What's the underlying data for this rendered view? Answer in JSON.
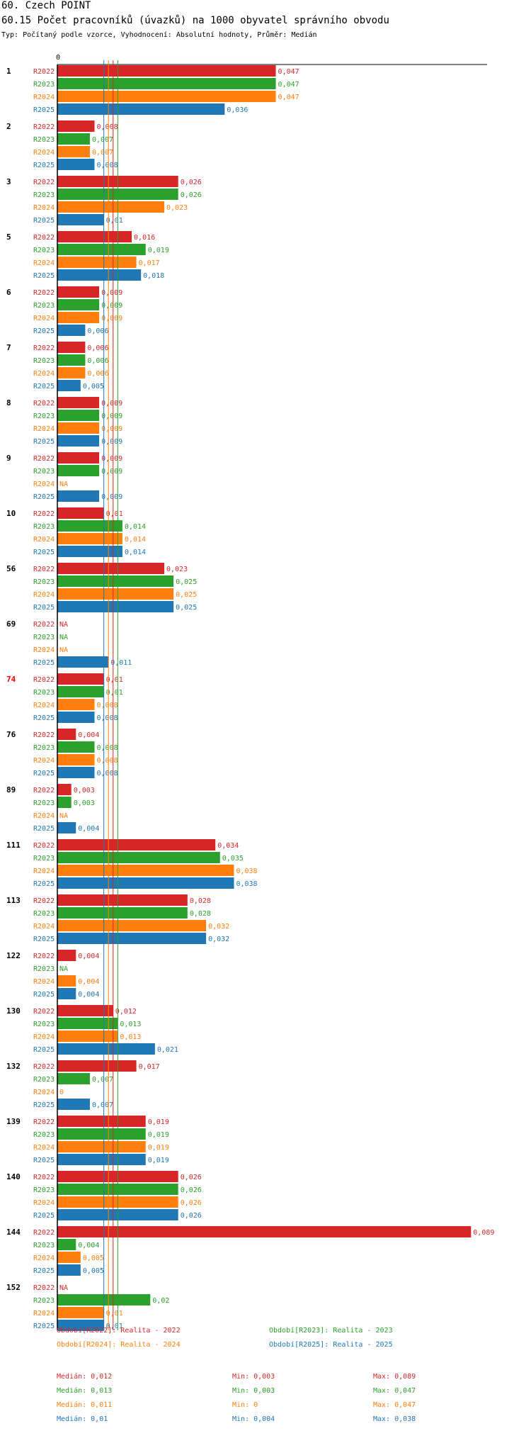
{
  "header": {
    "title": "60. Czech POINT",
    "subtitle": "60.15 Počet pracovníků (úvazků) na 1000 obyvatel správního obvodu",
    "description": "Typ: Počítaný podle vzorce, Vyhodnocení: Absolutní hodnoty, Průměr: Medián"
  },
  "colors": {
    "R2022": "#d62728",
    "R2023": "#2ca02c",
    "R2024": "#ff7f0e",
    "R2025": "#1f77b4",
    "highlight_group": "#ff0000"
  },
  "chart_data": {
    "type": "bar",
    "orientation": "horizontal",
    "axis_zero_label": "0",
    "series_names": [
      "R2022",
      "R2023",
      "R2024",
      "R2025"
    ],
    "groups": [
      {
        "label": "1",
        "values": [
          "0,047",
          "0,047",
          "0,047",
          "0,036"
        ]
      },
      {
        "label": "2",
        "values": [
          "0,008",
          "0,007",
          "0,007",
          "0,008"
        ]
      },
      {
        "label": "3",
        "values": [
          "0,026",
          "0,026",
          "0,023",
          "0,01"
        ]
      },
      {
        "label": "5",
        "values": [
          "0,016",
          "0,019",
          "0,017",
          "0,018"
        ]
      },
      {
        "label": "6",
        "values": [
          "0,009",
          "0,009",
          "0,009",
          "0,006"
        ]
      },
      {
        "label": "7",
        "values": [
          "0,006",
          "0,006",
          "0,006",
          "0,005"
        ]
      },
      {
        "label": "8",
        "values": [
          "0,009",
          "0,009",
          "0,009",
          "0,009"
        ]
      },
      {
        "label": "9",
        "values": [
          "0,009",
          "0,009",
          "NA",
          "0,009"
        ]
      },
      {
        "label": "10",
        "values": [
          "0,01",
          "0,014",
          "0,014",
          "0,014"
        ]
      },
      {
        "label": "56",
        "values": [
          "0,023",
          "0,025",
          "0,025",
          "0,025"
        ]
      },
      {
        "label": "69",
        "values": [
          "NA",
          "NA",
          "NA",
          "0,011"
        ]
      },
      {
        "label": "74",
        "values": [
          "0,01",
          "0,01",
          "0,008",
          "0,008"
        ],
        "highlight": true
      },
      {
        "label": "76",
        "values": [
          "0,004",
          "0,008",
          "0,008",
          "0,008"
        ]
      },
      {
        "label": "89",
        "values": [
          "0,003",
          "0,003",
          "NA",
          "0,004"
        ]
      },
      {
        "label": "111",
        "values": [
          "0,034",
          "0,035",
          "0,038",
          "0,038"
        ]
      },
      {
        "label": "113",
        "values": [
          "0,028",
          "0,028",
          "0,032",
          "0,032"
        ]
      },
      {
        "label": "122",
        "values": [
          "0,004",
          "NA",
          "0,004",
          "0,004"
        ]
      },
      {
        "label": "130",
        "values": [
          "0,012",
          "0,013",
          "0,013",
          "0,021"
        ]
      },
      {
        "label": "132",
        "values": [
          "0,017",
          "0,007",
          "0",
          "0,007"
        ]
      },
      {
        "label": "139",
        "values": [
          "0,019",
          "0,019",
          "0,019",
          "0,019"
        ]
      },
      {
        "label": "140",
        "values": [
          "0,026",
          "0,026",
          "0,026",
          "0,026"
        ]
      },
      {
        "label": "144",
        "values": [
          "0,089",
          "0,004",
          "0,005",
          "0,005"
        ]
      },
      {
        "label": "152",
        "values": [
          "NA",
          "0,02",
          "0,01",
          "0,01"
        ]
      }
    ],
    "x_range": [
      0,
      0.09
    ],
    "medians": [
      0.012,
      0.013,
      0.011,
      0.01
    ],
    "legend": [
      "Období[R2022]: Realita - 2022",
      "Období[R2023]: Realita - 2023",
      "Období[R2024]: Realita - 2024",
      "Období[R2025]: Realita - 2025"
    ],
    "stats": [
      {
        "median": "Medián: 0,012",
        "min": "Min: 0,003",
        "max": "Max: 0,089"
      },
      {
        "median": "Medián: 0,013",
        "min": "Min: 0,003",
        "max": "Max: 0,047"
      },
      {
        "median": "Medián: 0,011",
        "min": "Min: 0",
        "max": "Max: 0,047"
      },
      {
        "median": "Medián: 0,01",
        "min": "Min: 0,004",
        "max": "Max: 0,038"
      }
    ]
  }
}
